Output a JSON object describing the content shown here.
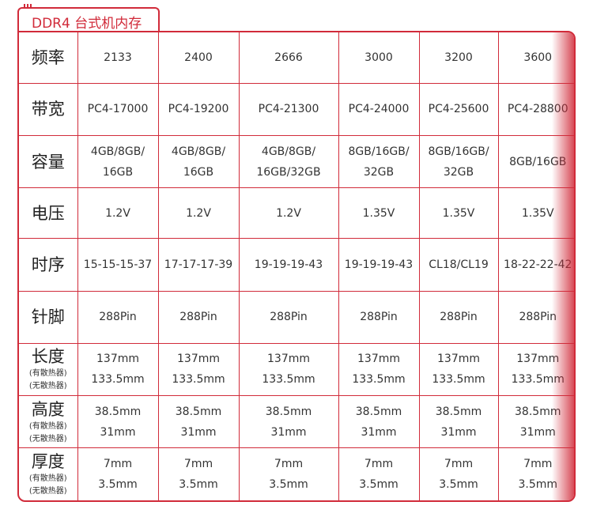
{
  "title": "DDR4 台式机内存",
  "rows": [
    {
      "label": "频率",
      "subs": [],
      "values": [
        [
          "2133"
        ],
        [
          "2400"
        ],
        [
          "2666"
        ],
        [
          "3000"
        ],
        [
          "3200"
        ],
        [
          "3600"
        ]
      ]
    },
    {
      "label": "带宽",
      "subs": [],
      "values": [
        [
          "PC4-17000"
        ],
        [
          "PC4-19200"
        ],
        [
          "PC4-21300"
        ],
        [
          "PC4-24000"
        ],
        [
          "PC4-25600"
        ],
        [
          "PC4-28800"
        ]
      ]
    },
    {
      "label": "容量",
      "subs": [],
      "values": [
        [
          "4GB/8GB/",
          "16GB"
        ],
        [
          "4GB/8GB/",
          "16GB"
        ],
        [
          "4GB/8GB/",
          "16GB/32GB"
        ],
        [
          "8GB/16GB/",
          "32GB"
        ],
        [
          "8GB/16GB/",
          "32GB"
        ],
        [
          "8GB/16GB"
        ]
      ]
    },
    {
      "label": "电压",
      "subs": [],
      "values": [
        [
          "1.2V"
        ],
        [
          "1.2V"
        ],
        [
          "1.2V"
        ],
        [
          "1.35V"
        ],
        [
          "1.35V"
        ],
        [
          "1.35V"
        ]
      ]
    },
    {
      "label": "时序",
      "subs": [],
      "values": [
        [
          "15-15-15-37"
        ],
        [
          "17-17-17-39"
        ],
        [
          "19-19-19-43"
        ],
        [
          "19-19-19-43"
        ],
        [
          "CL18/CL19"
        ],
        [
          "18-22-22-42"
        ]
      ]
    },
    {
      "label": "针脚",
      "subs": [],
      "values": [
        [
          "288Pin"
        ],
        [
          "288Pin"
        ],
        [
          "288Pin"
        ],
        [
          "288Pin"
        ],
        [
          "288Pin"
        ],
        [
          "288Pin"
        ]
      ]
    },
    {
      "label": "长度",
      "subs": [
        "(有散热器)",
        "(无散热器)"
      ],
      "values": [
        [
          "137mm",
          "133.5mm"
        ],
        [
          "137mm",
          "133.5mm"
        ],
        [
          "137mm",
          "133.5mm"
        ],
        [
          "137mm",
          "133.5mm"
        ],
        [
          "137mm",
          "133.5mm"
        ],
        [
          "137mm",
          "133.5mm"
        ]
      ]
    },
    {
      "label": "高度",
      "subs": [
        "(有散热器)",
        "(无散热器)"
      ],
      "values": [
        [
          "38.5mm",
          "31mm"
        ],
        [
          "38.5mm",
          "31mm"
        ],
        [
          "38.5mm",
          "31mm"
        ],
        [
          "38.5mm",
          "31mm"
        ],
        [
          "38.5mm",
          "31mm"
        ],
        [
          "38.5mm",
          "31mm"
        ]
      ]
    },
    {
      "label": "厚度",
      "subs": [
        "(有散热器)",
        "(无散热器)"
      ],
      "values": [
        [
          "7mm",
          "3.5mm"
        ],
        [
          "7mm",
          "3.5mm"
        ],
        [
          "7mm",
          "3.5mm"
        ],
        [
          "7mm",
          "3.5mm"
        ],
        [
          "7mm",
          "3.5mm"
        ],
        [
          "7mm",
          "3.5mm"
        ]
      ]
    }
  ],
  "colors": {
    "accent": "#d12b3a",
    "text": "#333333"
  }
}
